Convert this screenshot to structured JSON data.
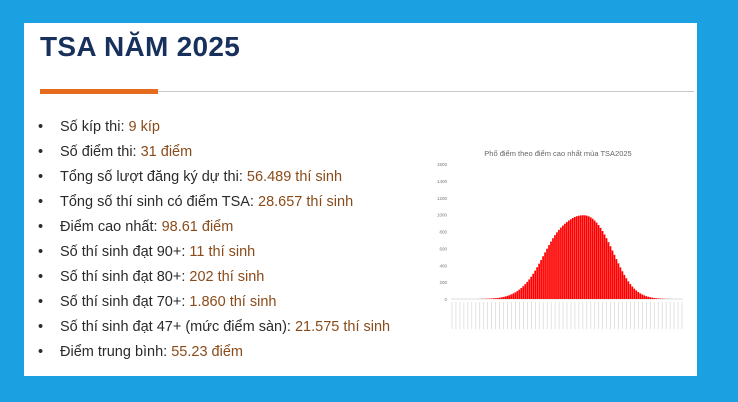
{
  "slide": {
    "title": "TSA NĂM 2025",
    "bullet_char": "•",
    "facts": [
      {
        "label": "Số kíp thi: ",
        "value": "9 kíp"
      },
      {
        "label": "Số điểm thi: ",
        "value": "31 điểm"
      },
      {
        "label": "Tổng số lượt đăng ký dự thi: ",
        "value": "56.489 thí sinh"
      },
      {
        "label": "Tổng số thí sinh có điểm TSA: ",
        "value": "28.657 thí sinh"
      },
      {
        "label": "Điểm cao nhất: ",
        "value": "98.61 điểm"
      },
      {
        "label": "Số thí sinh đạt 90+: ",
        "value": "11 thí sinh"
      },
      {
        "label": "Số thí sinh đạt 80+: ",
        "value": "202 thí sinh"
      },
      {
        "label": "Số thí sinh đạt 70+: ",
        "value": "1.860 thí sinh"
      },
      {
        "label": "Số thí sinh đạt 47+ (mức điểm sàn): ",
        "value": "21.575 thí sinh"
      },
      {
        "label": "Điểm trung bình: ",
        "value": "55.23 điểm"
      }
    ]
  },
  "colors": {
    "background": "#1ba1e2",
    "title": "#17305c",
    "accent": "#e56b1f",
    "value_text": "#8a4b1a",
    "bar": "#ff0000"
  },
  "chart_data": {
    "type": "bar",
    "title": "Phổ điểm theo điểm cao nhất mùa TSA2025",
    "ylim": [
      0,
      1600
    ],
    "yticks": [
      0,
      200,
      400,
      600,
      800,
      1000,
      1200,
      1400,
      1600
    ],
    "values": [
      0,
      0,
      0,
      0,
      0,
      0,
      0,
      0,
      0,
      0,
      0,
      0,
      0,
      0,
      1,
      2,
      2,
      3,
      4,
      5,
      6,
      8,
      10,
      12,
      15,
      19,
      24,
      30,
      37,
      45,
      55,
      66,
      79,
      94,
      111,
      130,
      152,
      176,
      203,
      232,
      264,
      299,
      337,
      377,
      419,
      462,
      507,
      552,
      596,
      639,
      681,
      720,
      757,
      790,
      819,
      846,
      870,
      892,
      912,
      930,
      946,
      960,
      972,
      981,
      987,
      991,
      993,
      992,
      988,
      980,
      968,
      951,
      930,
      905,
      876,
      843,
      806,
      765,
      721,
      674,
      625,
      575,
      524,
      473,
      423,
      375,
      329,
      286,
      246,
      210,
      177,
      148,
      123,
      101,
      83,
      67,
      54,
      43,
      34,
      27,
      21,
      16,
      12,
      9,
      7,
      5,
      4,
      3,
      2,
      1,
      1,
      0,
      0,
      0,
      0,
      0,
      0
    ],
    "grid": false,
    "legend": "none"
  }
}
